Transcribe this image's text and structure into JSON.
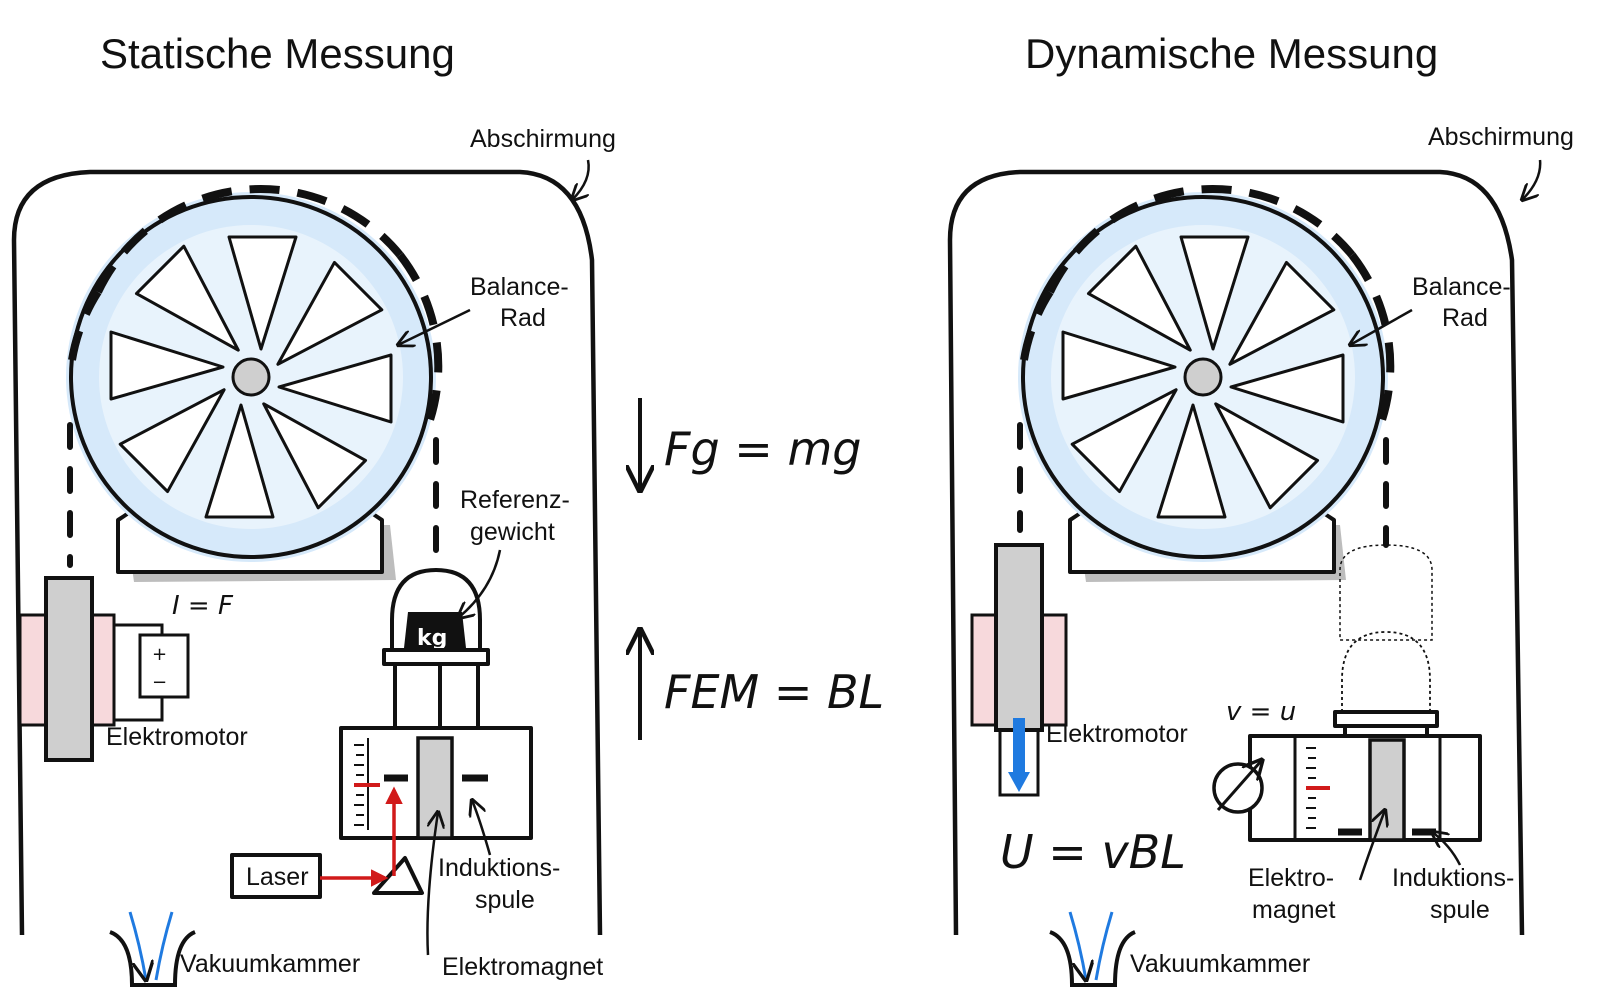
{
  "left_panel": {
    "title": "Statische Messung",
    "shield_label": "Abschirmung",
    "wheel_label_1": "Balance-",
    "wheel_label_2": "Rad",
    "ref_label_1": "Referenz-",
    "ref_label_2": "gewicht",
    "weight_text": "kg",
    "motor_label": "Elektromotor",
    "current_eq": "I = F",
    "laser_label": "Laser",
    "coil_label_1": "Induktions-",
    "coil_label_2": "spule",
    "magnet_label": "Elektromagnet",
    "vacuum_label": "Vakuumkammer"
  },
  "middle": {
    "eq_gravity": "Fg = mg",
    "eq_em": "FEM = BL"
  },
  "right_panel": {
    "title": "Dynamische Messung",
    "shield_label": "Abschirmung",
    "wheel_label_1": "Balance-",
    "wheel_label_2": "Rad",
    "motor_label": "Elektromotor",
    "velocity_eq": "v = u",
    "voltage_eq": "U = vBL",
    "magnet_label_1": "Elektro-",
    "magnet_label_2": "magnet",
    "coil_label_1": "Induktions-",
    "coil_label_2": "spule",
    "vacuum_label": "Vakuumkammer"
  },
  "colors": {
    "wheel_glow": "#d6e9fa",
    "motion_arrow": "#1f7ae0",
    "laser": "#d11a1a",
    "magnet_pink": "#f7d9dc",
    "gray": "#cfcfcf"
  }
}
